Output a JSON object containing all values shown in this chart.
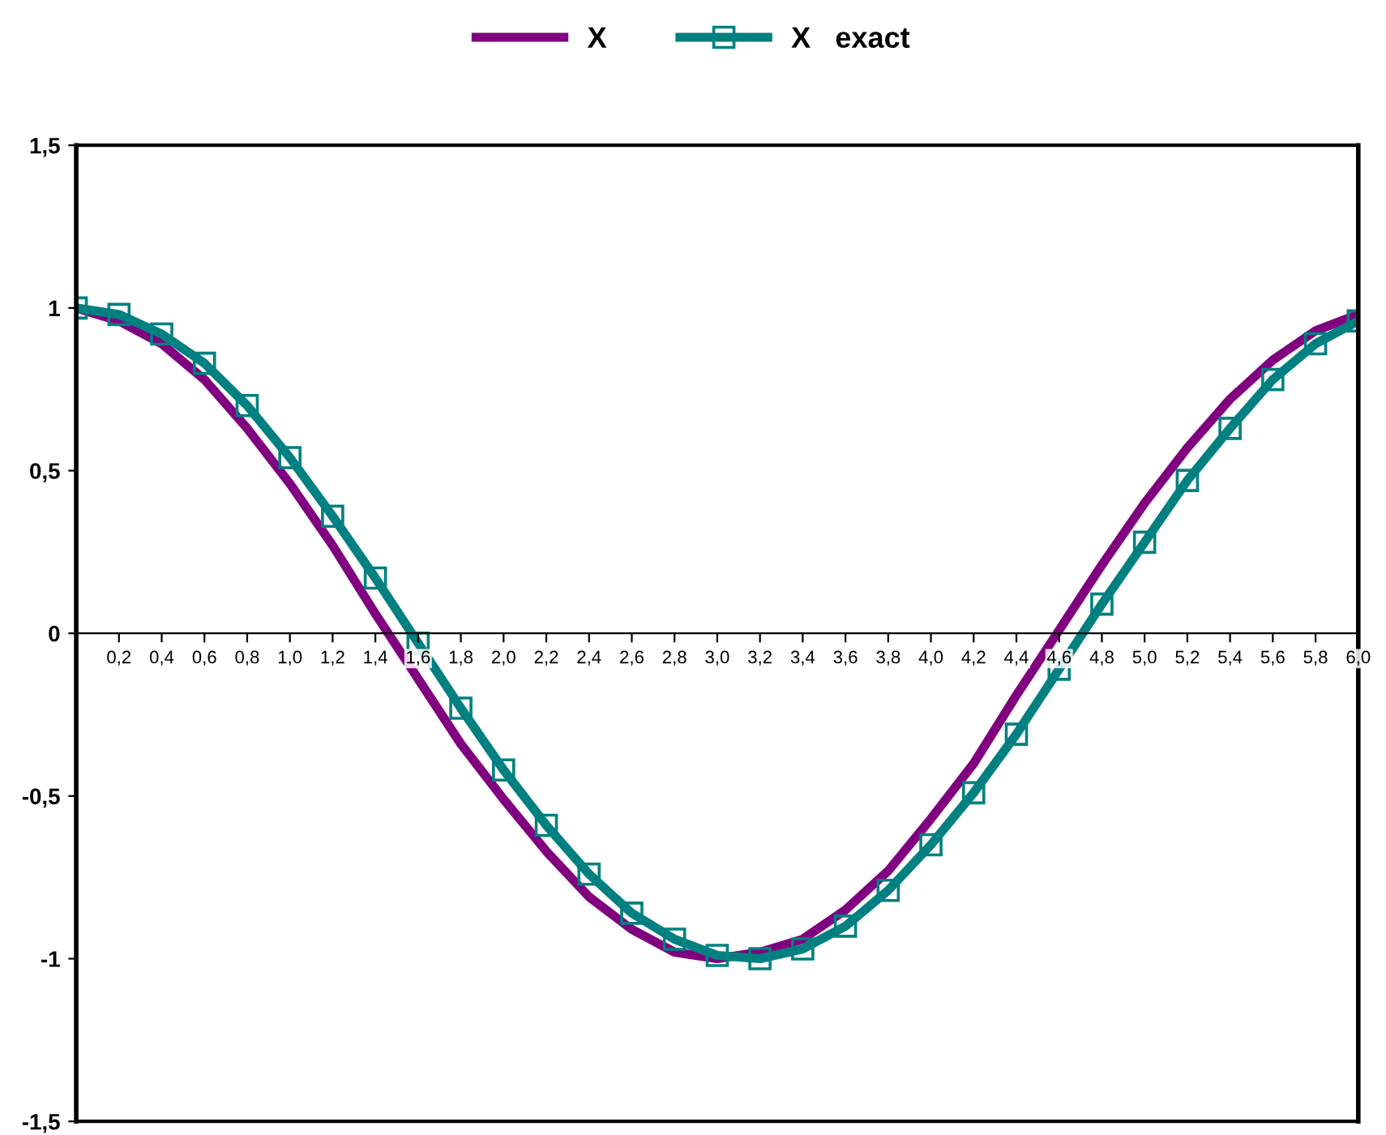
{
  "chart_data": {
    "type": "line",
    "categories": [
      null,
      "0,2",
      "0,4",
      "0,6",
      "0,8",
      "1,0",
      "1,2",
      "1,4",
      "1,6",
      "1,8",
      "2,0",
      "2,2",
      "2,4",
      "2,6",
      "2,8",
      "3,0",
      "3,2",
      "3,4",
      "3,6",
      "3,8",
      "4,0",
      "4,2",
      "4,4",
      "4,6",
      "4,8",
      "5,0",
      "5,2",
      "5,4",
      "5,6",
      "5,8",
      "6,0"
    ],
    "series": [
      {
        "name": "X",
        "color": "#800080",
        "marker": "none",
        "values": [
          1,
          0.96,
          0.89,
          0.78,
          0.63,
          0.46,
          0.27,
          0.06,
          -0.14,
          -0.34,
          -0.51,
          -0.67,
          -0.81,
          -0.91,
          -0.98,
          -1.0,
          -0.98,
          -0.94,
          -0.85,
          -0.73,
          -0.57,
          -0.4,
          -0.19,
          0.01,
          0.21,
          0.4,
          0.57,
          0.72,
          0.84,
          0.93,
          0.98
        ]
      },
      {
        "name": "X   exact",
        "color": "#008080",
        "marker": "square",
        "values": [
          1,
          0.98,
          0.92,
          0.83,
          0.7,
          0.54,
          0.36,
          0.17,
          -0.03,
          -0.23,
          -0.42,
          -0.59,
          -0.74,
          -0.86,
          -0.94,
          -0.99,
          -1.0,
          -0.97,
          -0.9,
          -0.79,
          -0.65,
          -0.49,
          -0.31,
          -0.11,
          0.09,
          0.28,
          0.47,
          0.63,
          0.78,
          0.89,
          0.96
        ]
      }
    ],
    "ylim": [
      -1.5,
      1.5
    ],
    "yticks": [
      {
        "value": -1.5,
        "label": "-1,5"
      },
      {
        "value": -1,
        "label": "-1"
      },
      {
        "value": -0.5,
        "label": "-0,5"
      },
      {
        "value": 0,
        "label": "0"
      },
      {
        "value": 0.5,
        "label": "0,5"
      },
      {
        "value": 1,
        "label": "1"
      },
      {
        "value": 1.5,
        "label": "1,5"
      }
    ],
    "grid": false,
    "legend": "top",
    "line_style": "solid"
  }
}
